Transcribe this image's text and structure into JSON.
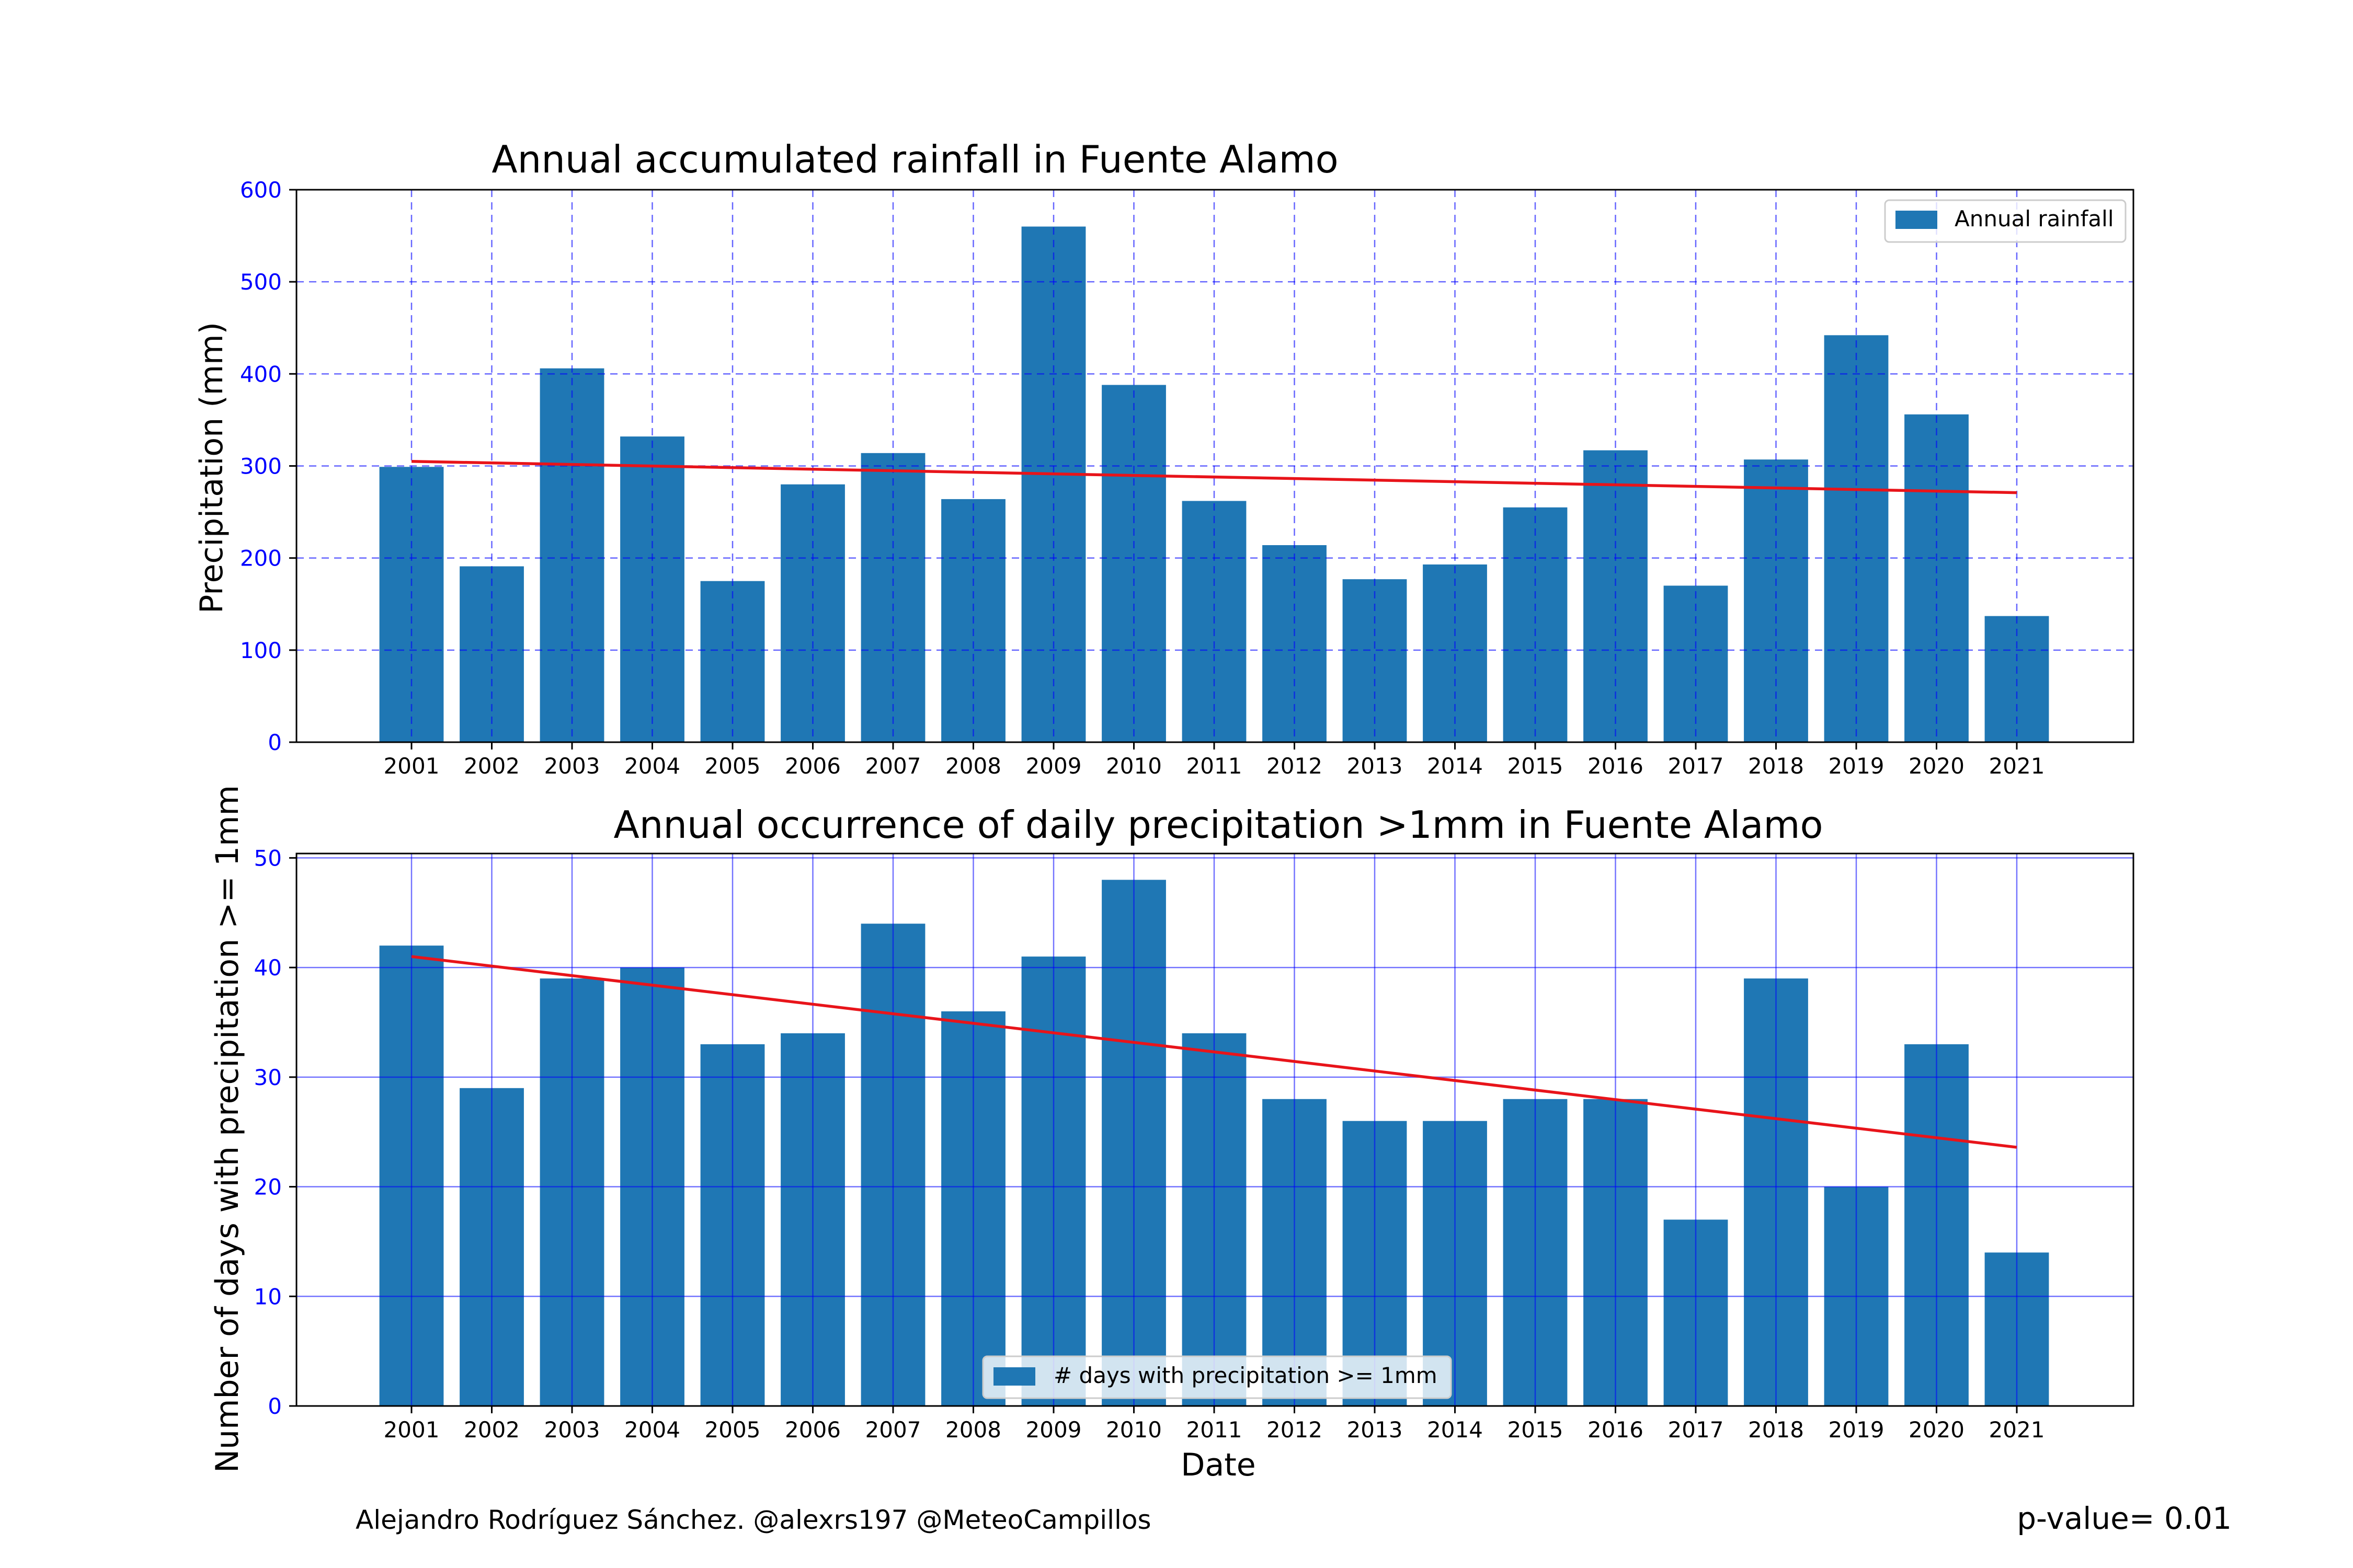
{
  "colors": {
    "bar": "#1f77b4",
    "trend": "#e8141a",
    "tick_label": "#0000ff",
    "grid": "#0000ff",
    "text": "#000000"
  },
  "footer": {
    "credit": "Alejandro Rodríguez Sánchez. @alexrs197 @MeteoCampillos",
    "pvalue": "p-value= 0.01"
  },
  "chart_data": [
    {
      "type": "bar",
      "title": "Annual accumulated rainfall in Fuente Alamo",
      "xlabel": "",
      "ylabel": "Precipitation (mm)",
      "categories": [
        "2001",
        "2002",
        "2003",
        "2004",
        "2005",
        "2006",
        "2007",
        "2008",
        "2009",
        "2010",
        "2011",
        "2012",
        "2013",
        "2014",
        "2015",
        "2016",
        "2017",
        "2018",
        "2019",
        "2020",
        "2021"
      ],
      "series": [
        {
          "name": "Annual rainfall",
          "values": [
            299,
            191,
            406,
            332,
            175,
            280,
            314,
            264,
            560,
            388,
            262,
            214,
            177,
            193,
            255,
            317,
            170,
            307,
            442,
            356,
            137
          ]
        }
      ],
      "trend": {
        "start": 305,
        "end": 271
      },
      "ylim": [
        0,
        600
      ],
      "yticks": [
        0,
        100,
        200,
        300,
        400,
        500,
        600
      ],
      "grid": "dashed",
      "legend": "upper right"
    },
    {
      "type": "bar",
      "title": "Annual occurrence of daily precipitation >1mm in Fuente Alamo",
      "xlabel": "Date",
      "ylabel": "Number of days with precipitation >= 1mm",
      "categories": [
        "2001",
        "2002",
        "2003",
        "2004",
        "2005",
        "2006",
        "2007",
        "2008",
        "2009",
        "2010",
        "2011",
        "2012",
        "2013",
        "2014",
        "2015",
        "2016",
        "2017",
        "2018",
        "2019",
        "2020",
        "2021"
      ],
      "series": [
        {
          "name": "# days with precipitation >= 1mm",
          "values": [
            42,
            29,
            39,
            40,
            33,
            34,
            44,
            36,
            41,
            48,
            34,
            28,
            26,
            26,
            28,
            28,
            17,
            39,
            20,
            33,
            14
          ]
        }
      ],
      "trend": {
        "start": 41.0,
        "end": 23.6
      },
      "ylim": [
        0,
        50.4
      ],
      "yticks": [
        0,
        10,
        20,
        30,
        40,
        50
      ],
      "grid": "solid",
      "legend": "lower center"
    }
  ]
}
